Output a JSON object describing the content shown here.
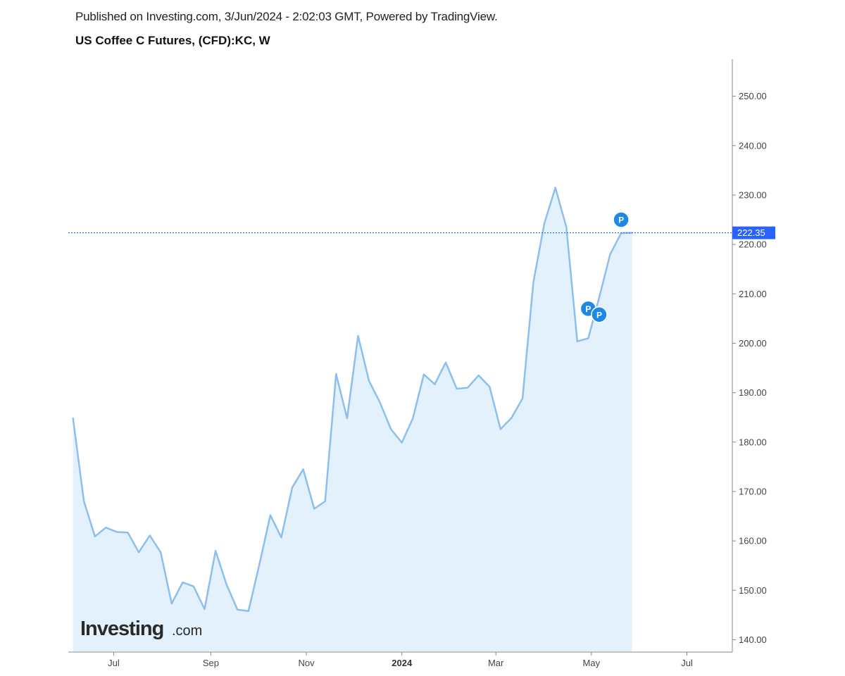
{
  "header": {
    "published": "Published on Investing.com, 3/Jun/2024 - 2:02:03 GMT, Powered by TradingView.",
    "instrument": "US Coffee C Futures, (CFD):KC, W"
  },
  "logo": {
    "main": "Investing",
    "suffix": ".com"
  },
  "colors": {
    "line": "#8cbfee",
    "area": "#e2f1fb",
    "price_line": "#3b6fd8",
    "price_tag": "#2962ff",
    "marker": "#1e88e5",
    "axis": "#888888"
  },
  "chart_data": {
    "type": "area",
    "title": "US Coffee C Futures, (CFD):KC, W",
    "x": [
      "2023-06-05",
      "2023-06-12",
      "2023-06-19",
      "2023-06-26",
      "2023-07-03",
      "2023-07-10",
      "2023-07-17",
      "2023-07-24",
      "2023-07-31",
      "2023-08-07",
      "2023-08-14",
      "2023-08-21",
      "2023-08-28",
      "2023-09-04",
      "2023-09-11",
      "2023-09-18",
      "2023-09-25",
      "2023-10-02",
      "2023-10-09",
      "2023-10-16",
      "2023-10-23",
      "2023-10-30",
      "2023-11-06",
      "2023-11-13",
      "2023-11-20",
      "2023-11-27",
      "2023-12-04",
      "2023-12-11",
      "2023-12-18",
      "2023-12-25",
      "2024-01-01",
      "2024-01-08",
      "2024-01-15",
      "2024-01-22",
      "2024-01-29",
      "2024-02-05",
      "2024-02-12",
      "2024-02-19",
      "2024-02-26",
      "2024-03-04",
      "2024-03-11",
      "2024-03-18",
      "2024-03-25",
      "2024-04-01",
      "2024-04-08",
      "2024-04-15",
      "2024-04-22",
      "2024-04-29",
      "2024-05-06",
      "2024-05-13",
      "2024-05-20",
      "2024-05-27"
    ],
    "values": [
      184.8,
      168.0,
      160.9,
      162.7,
      161.8,
      161.7,
      157.7,
      161.1,
      157.7,
      147.3,
      151.6,
      150.8,
      146.2,
      158.0,
      151.2,
      146.1,
      145.8,
      155.2,
      165.2,
      160.7,
      170.8,
      174.5,
      166.5,
      168.0,
      193.8,
      184.8,
      201.5,
      192.4,
      188.0,
      182.6,
      179.9,
      184.8,
      193.7,
      191.7,
      196.1,
      190.8,
      191.0,
      193.5,
      191.2,
      182.6,
      184.9,
      188.8,
      212.4,
      224.3,
      231.5,
      223.5,
      200.4,
      201.0,
      209.3,
      218.0,
      222.3,
      222.35
    ],
    "last_price": "222.35",
    "last_value": 222.35,
    "ylim": [
      137.5,
      257.5
    ],
    "y_ticks": [
      "140.00",
      "150.00",
      "160.00",
      "170.00",
      "180.00",
      "190.00",
      "200.00",
      "210.00",
      "220.00",
      "230.00",
      "240.00",
      "250.00"
    ],
    "x_ticks": [
      {
        "label": "Jul",
        "date": "2023-07-01",
        "bold": false
      },
      {
        "label": "Sep",
        "date": "2023-09-01",
        "bold": false
      },
      {
        "label": "Nov",
        "date": "2023-11-01",
        "bold": false
      },
      {
        "label": "2024",
        "date": "2024-01-01",
        "bold": true
      },
      {
        "label": "Mar",
        "date": "2024-03-01",
        "bold": false
      },
      {
        "label": "May",
        "date": "2024-05-01",
        "bold": false
      },
      {
        "label": "Jul",
        "date": "2024-07-01",
        "bold": false
      }
    ],
    "x_range": [
      "2023-06-02",
      "2024-07-30"
    ],
    "markers": [
      {
        "label": "P",
        "date": "2024-04-29",
        "value": 207.0
      },
      {
        "label": "P",
        "date": "2024-05-06",
        "value": 205.8
      },
      {
        "label": "P",
        "date": "2024-05-20",
        "value": 225.0
      }
    ],
    "grid": false,
    "legend": "none"
  }
}
